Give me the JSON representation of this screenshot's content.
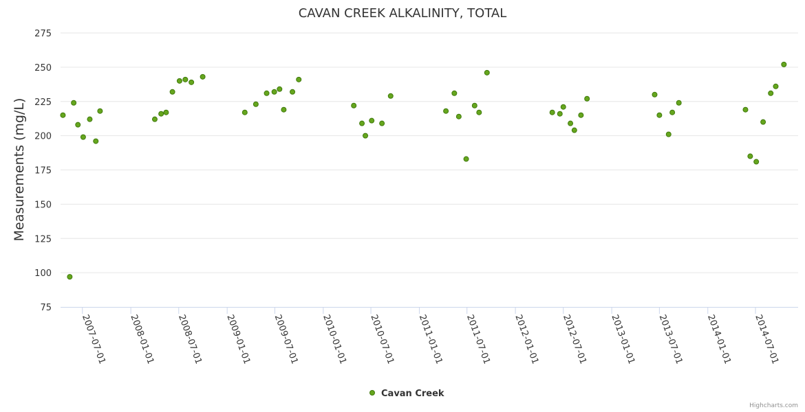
{
  "chart_data": {
    "type": "scatter",
    "title": "CAVAN CREEK ALKALINITY, TOTAL",
    "xlabel": "",
    "ylabel": "Measurements (mg/L)",
    "ylim": [
      75,
      275
    ],
    "yticks": [
      75,
      100,
      125,
      150,
      175,
      200,
      225,
      250,
      275
    ],
    "xlim": [
      "2007-04-09",
      "2014-12-10"
    ],
    "xticks": [
      "2007-07-01",
      "2008-01-01",
      "2008-07-01",
      "2009-01-01",
      "2009-07-01",
      "2010-01-01",
      "2010-07-01",
      "2011-01-01",
      "2011-07-01",
      "2012-01-01",
      "2012-07-01",
      "2013-01-01",
      "2013-07-01",
      "2014-01-01",
      "2014-07-01"
    ],
    "grid": "horizontal",
    "legend_position": "bottom-center",
    "series": [
      {
        "name": "Cavan Creek",
        "color": "#66a61e",
        "points": [
          [
            "2007-04-18",
            215
          ],
          [
            "2007-05-14",
            97
          ],
          [
            "2007-05-29",
            224
          ],
          [
            "2007-06-14",
            208
          ],
          [
            "2007-07-04",
            199
          ],
          [
            "2007-07-29",
            212
          ],
          [
            "2007-08-21",
            196
          ],
          [
            "2007-09-06",
            218
          ],
          [
            "2008-04-01",
            212
          ],
          [
            "2008-04-25",
            216
          ],
          [
            "2008-05-14",
            217
          ],
          [
            "2008-06-07",
            232
          ],
          [
            "2008-07-04",
            240
          ],
          [
            "2008-07-26",
            241
          ],
          [
            "2008-08-18",
            239
          ],
          [
            "2008-09-30",
            243
          ],
          [
            "2009-03-09",
            217
          ],
          [
            "2009-04-20",
            223
          ],
          [
            "2009-05-31",
            231
          ],
          [
            "2009-06-29",
            232
          ],
          [
            "2009-07-19",
            234
          ],
          [
            "2009-08-04",
            219
          ],
          [
            "2009-09-06",
            232
          ],
          [
            "2009-09-30",
            241
          ],
          [
            "2010-04-27",
            222
          ],
          [
            "2010-05-28",
            209
          ],
          [
            "2010-06-10",
            200
          ],
          [
            "2010-07-04",
            211
          ],
          [
            "2010-08-12",
            209
          ],
          [
            "2010-09-14",
            229
          ],
          [
            "2011-04-12",
            218
          ],
          [
            "2011-05-14",
            231
          ],
          [
            "2011-05-31",
            214
          ],
          [
            "2011-06-28",
            183
          ],
          [
            "2011-07-30",
            222
          ],
          [
            "2011-08-16",
            217
          ],
          [
            "2011-09-15",
            246
          ],
          [
            "2012-05-20",
            217
          ],
          [
            "2012-06-18",
            216
          ],
          [
            "2012-07-01",
            221
          ],
          [
            "2012-07-28",
            209
          ],
          [
            "2012-08-12",
            204
          ],
          [
            "2012-09-06",
            215
          ],
          [
            "2012-09-29",
            227
          ],
          [
            "2013-06-13",
            230
          ],
          [
            "2013-07-01",
            215
          ],
          [
            "2013-08-05",
            201
          ],
          [
            "2013-08-19",
            217
          ],
          [
            "2013-09-13",
            224
          ],
          [
            "2014-05-24",
            219
          ],
          [
            "2014-06-11",
            185
          ],
          [
            "2014-07-04",
            181
          ],
          [
            "2014-07-30",
            210
          ],
          [
            "2014-08-28",
            231
          ],
          [
            "2014-09-16",
            236
          ],
          [
            "2014-10-17",
            252
          ]
        ]
      }
    ]
  },
  "legend": {
    "label": "Cavan Creek"
  },
  "credits": "Highcharts.com"
}
